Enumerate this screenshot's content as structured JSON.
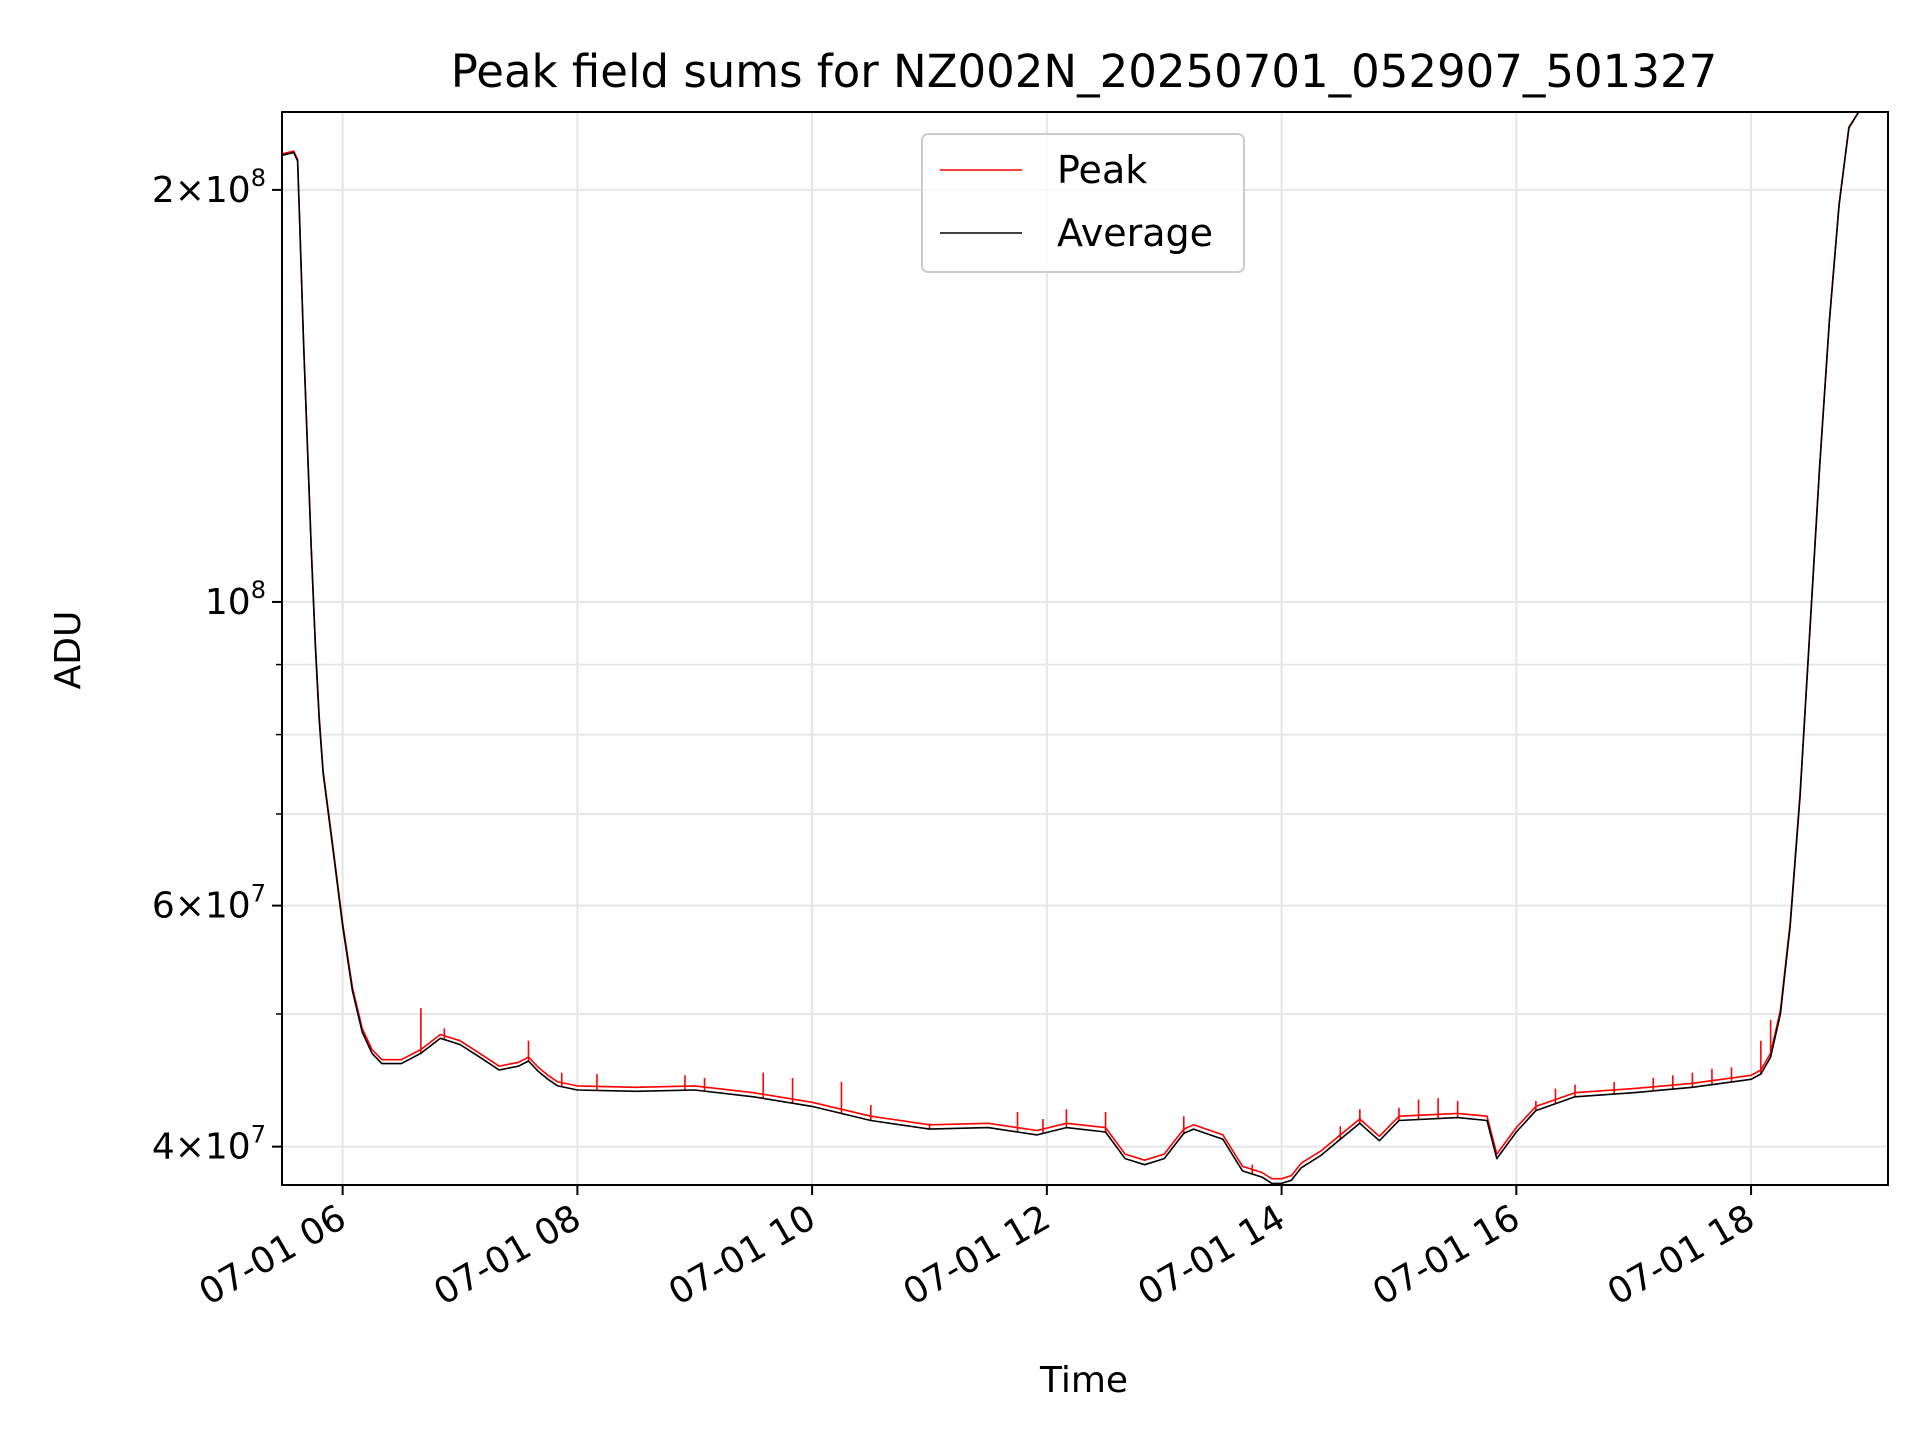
{
  "chart_data": {
    "type": "line",
    "title": "Peak field sums for NZ002N_20250701_052907_501327",
    "xlabel": "Time",
    "ylabel": "ADU",
    "xlim": [
      "2025-07-01 05:29",
      "2025-07-01 19:10"
    ],
    "ylim": [
      37500000,
      228000000
    ],
    "yscale": "log",
    "grid": true,
    "legend_position": "upper center",
    "x_ticks": [
      {
        "value": "2025-07-01 06:00",
        "label": "07-01 06"
      },
      {
        "value": "2025-07-01 08:00",
        "label": "07-01 08"
      },
      {
        "value": "2025-07-01 10:00",
        "label": "07-01 10"
      },
      {
        "value": "2025-07-01 12:00",
        "label": "07-01 12"
      },
      {
        "value": "2025-07-01 14:00",
        "label": "07-01 14"
      },
      {
        "value": "2025-07-01 16:00",
        "label": "07-01 16"
      },
      {
        "value": "2025-07-01 18:00",
        "label": "07-01 18"
      }
    ],
    "y_ticks": [
      {
        "value": 40000000,
        "mant": "4",
        "exp": "7"
      },
      {
        "value": 60000000,
        "mant": "6",
        "exp": "7"
      },
      {
        "value": 100000000,
        "mant": "",
        "exp": "8"
      },
      {
        "value": 200000000,
        "mant": "2",
        "exp": "8"
      }
    ],
    "y_minor_ticks": [
      50000000,
      70000000,
      80000000,
      90000000
    ],
    "series": [
      {
        "name": "Average",
        "color": "#000000",
        "x": [
          "05:29",
          "05:35",
          "05:37",
          "05:38",
          "05:40",
          "05:42",
          "05:44",
          "05:46",
          "05:48",
          "05:50",
          "05:55",
          "06:00",
          "06:05",
          "06:10",
          "06:15",
          "06:20",
          "06:30",
          "06:40",
          "06:50",
          "07:00",
          "07:10",
          "07:20",
          "07:30",
          "07:35",
          "07:40",
          "07:45",
          "07:50",
          "08:00",
          "08:30",
          "09:00",
          "09:30",
          "10:00",
          "10:30",
          "11:00",
          "11:30",
          "11:45",
          "11:55",
          "12:10",
          "12:30",
          "12:40",
          "12:50",
          "13:00",
          "13:10",
          "13:15",
          "13:30",
          "13:40",
          "13:50",
          "13:55",
          "14:00",
          "14:05",
          "14:10",
          "14:20",
          "14:30",
          "14:40",
          "14:50",
          "15:00",
          "15:30",
          "15:45",
          "15:50",
          "16:00",
          "16:10",
          "16:30",
          "17:00",
          "17:30",
          "18:00",
          "18:05",
          "18:10",
          "18:15",
          "18:20",
          "18:25",
          "18:30",
          "18:35",
          "18:40",
          "18:45",
          "18:50",
          "18:55",
          "19:00",
          "19:10"
        ],
        "y": [
          212000000,
          213000000,
          210000000,
          190000000,
          155000000,
          130000000,
          109000000,
          93000000,
          82000000,
          75000000,
          66000000,
          58000000,
          52000000,
          48500000,
          46800000,
          46000000,
          46000000,
          46800000,
          48000000,
          47500000,
          46500000,
          45500000,
          45800000,
          46200000,
          45400000,
          44800000,
          44300000,
          44000000,
          43900000,
          44000000,
          43500000,
          42800000,
          41800000,
          41200000,
          41300000,
          41000000,
          40800000,
          41300000,
          41000000,
          39200000,
          38800000,
          39200000,
          40900000,
          41200000,
          40500000,
          38400000,
          38000000,
          37600000,
          37600000,
          37800000,
          38600000,
          39400000,
          40500000,
          41600000,
          40400000,
          41800000,
          42000000,
          41800000,
          39200000,
          41000000,
          42500000,
          43500000,
          43800000,
          44200000,
          44800000,
          45200000,
          46500000,
          50000000,
          58000000,
          72000000,
          95000000,
          125000000,
          160000000,
          195000000,
          222000000,
          228000000,
          228000000,
          228000000
        ]
      },
      {
        "name": "Peak",
        "color": "#ff0000",
        "x": [
          "05:29",
          "05:35",
          "05:37",
          "05:38",
          "05:40",
          "05:42",
          "05:44",
          "05:46",
          "05:48",
          "05:50",
          "05:55",
          "06:00",
          "06:05",
          "06:10",
          "06:15",
          "06:20",
          "06:30",
          "06:40",
          "06:50",
          "07:00",
          "07:10",
          "07:20",
          "07:30",
          "07:35",
          "07:40",
          "07:45",
          "07:50",
          "08:00",
          "08:30",
          "09:00",
          "09:30",
          "10:00",
          "10:30",
          "11:00",
          "11:30",
          "11:45",
          "11:55",
          "12:10",
          "12:30",
          "12:40",
          "12:50",
          "13:00",
          "13:10",
          "13:15",
          "13:30",
          "13:40",
          "13:50",
          "13:55",
          "14:00",
          "14:05",
          "14:10",
          "14:20",
          "14:30",
          "14:40",
          "14:50",
          "15:00",
          "15:30",
          "15:45",
          "15:50",
          "16:00",
          "16:10",
          "16:30",
          "17:00",
          "17:30",
          "18:00",
          "18:05",
          "18:10",
          "18:15",
          "18:20",
          "18:25",
          "18:30",
          "18:35",
          "18:40",
          "18:45",
          "18:50",
          "18:55",
          "19:00",
          "19:10"
        ],
        "y": [
          212500000,
          213500000,
          210500000,
          190500000,
          155500000,
          130500000,
          109500000,
          93500000,
          82500000,
          75300000,
          66300000,
          58300000,
          52300000,
          48800000,
          47100000,
          46300000,
          46300000,
          47100000,
          48300000,
          47800000,
          46800000,
          45800000,
          46100000,
          46500000,
          45700000,
          45100000,
          44600000,
          44300000,
          44200000,
          44300000,
          43800000,
          43100000,
          42100000,
          41500000,
          41600000,
          41300000,
          41100000,
          41600000,
          41300000,
          39500000,
          39100000,
          39500000,
          41200000,
          41500000,
          40800000,
          38700000,
          38300000,
          37900000,
          37900000,
          38100000,
          38900000,
          39700000,
          40800000,
          41900000,
          40700000,
          42100000,
          42300000,
          42100000,
          39500000,
          41300000,
          42800000,
          43800000,
          44100000,
          44500000,
          45100000,
          45500000,
          46800000,
          50300000,
          58300000,
          72300000,
          95300000,
          125300000,
          160300000,
          195300000,
          222300000,
          228000000,
          228000000,
          228000000
        ],
        "spikes": [
          {
            "x": "06:40",
            "y": 50500000
          },
          {
            "x": "06:52",
            "y": 48800000
          },
          {
            "x": "07:35",
            "y": 47800000
          },
          {
            "x": "07:52",
            "y": 45300000
          },
          {
            "x": "08:10",
            "y": 45200000
          },
          {
            "x": "08:55",
            "y": 45100000
          },
          {
            "x": "09:05",
            "y": 44900000
          },
          {
            "x": "09:35",
            "y": 45300000
          },
          {
            "x": "09:50",
            "y": 44900000
          },
          {
            "x": "10:15",
            "y": 44600000
          },
          {
            "x": "10:30",
            "y": 42900000
          },
          {
            "x": "11:00",
            "y": 41600000
          },
          {
            "x": "11:45",
            "y": 42400000
          },
          {
            "x": "11:58",
            "y": 41900000
          },
          {
            "x": "12:10",
            "y": 42600000
          },
          {
            "x": "12:30",
            "y": 42400000
          },
          {
            "x": "13:10",
            "y": 42100000
          },
          {
            "x": "13:45",
            "y": 38800000
          },
          {
            "x": "14:30",
            "y": 41400000
          },
          {
            "x": "14:40",
            "y": 42600000
          },
          {
            "x": "15:00",
            "y": 42700000
          },
          {
            "x": "15:10",
            "y": 43300000
          },
          {
            "x": "15:20",
            "y": 43400000
          },
          {
            "x": "15:30",
            "y": 43200000
          },
          {
            "x": "16:10",
            "y": 43200000
          },
          {
            "x": "16:20",
            "y": 44100000
          },
          {
            "x": "16:30",
            "y": 44400000
          },
          {
            "x": "16:50",
            "y": 44600000
          },
          {
            "x": "17:10",
            "y": 44900000
          },
          {
            "x": "17:20",
            "y": 45100000
          },
          {
            "x": "17:30",
            "y": 45300000
          },
          {
            "x": "17:40",
            "y": 45600000
          },
          {
            "x": "17:50",
            "y": 45700000
          },
          {
            "x": "18:05",
            "y": 47800000
          },
          {
            "x": "18:10",
            "y": 49500000
          }
        ]
      }
    ]
  }
}
